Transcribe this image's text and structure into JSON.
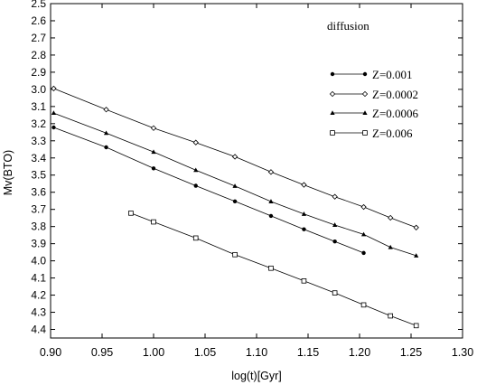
{
  "chart_data": {
    "type": "line",
    "title": "",
    "annotation": "diffusion",
    "xlabel": "log(t)[Gyr]",
    "ylabel": "Mv(BTO)",
    "xlim": [
      0.9,
      1.3
    ],
    "ylim": [
      2.5,
      4.45
    ],
    "y_inverted": true,
    "x_ticks": [
      "0.90",
      "0.95",
      "1.00",
      "1.05",
      "1.10",
      "1.15",
      "1.20",
      "1.25",
      "1.30"
    ],
    "y_ticks": [
      "2.5",
      "2.6",
      "2.7",
      "2.8",
      "2.9",
      "3.0",
      "3.1",
      "3.2",
      "3.3",
      "3.4",
      "3.5",
      "3.6",
      "3.7",
      "3.8",
      "3.9",
      "4.0",
      "4.1",
      "4.2",
      "4.3",
      "4.4"
    ],
    "grid": false,
    "legend_position": "right",
    "series": [
      {
        "name": "Z=0.001",
        "marker": "filled-circle",
        "color": "#000000",
        "x": [
          0.903,
          0.954,
          1.0,
          1.041,
          1.079,
          1.114,
          1.146,
          1.176,
          1.204
        ],
        "y": [
          3.222,
          3.338,
          3.461,
          3.562,
          3.653,
          3.738,
          3.816,
          3.887,
          3.954
        ]
      },
      {
        "name": "Z=0.0002",
        "marker": "open-diamond",
        "color": "#000000",
        "x": [
          0.903,
          0.954,
          1.0,
          1.041,
          1.079,
          1.114,
          1.146,
          1.176,
          1.204,
          1.23,
          1.255
        ],
        "y": [
          2.995,
          3.118,
          3.226,
          3.31,
          3.393,
          3.482,
          3.557,
          3.626,
          3.686,
          3.749,
          3.806
        ]
      },
      {
        "name": "Z=0.0006",
        "marker": "filled-triangle",
        "color": "#000000",
        "x": [
          0.903,
          0.954,
          1.0,
          1.041,
          1.079,
          1.114,
          1.146,
          1.176,
          1.204,
          1.23,
          1.255
        ],
        "y": [
          3.138,
          3.255,
          3.365,
          3.471,
          3.564,
          3.654,
          3.727,
          3.791,
          3.846,
          3.921,
          3.97
        ]
      },
      {
        "name": "Z=0.006",
        "marker": "open-square",
        "color": "#000000",
        "x": [
          0.978,
          1.0,
          1.041,
          1.079,
          1.114,
          1.146,
          1.176,
          1.204,
          1.23,
          1.255
        ],
        "y": [
          3.722,
          3.773,
          3.867,
          3.964,
          4.043,
          4.117,
          4.187,
          4.257,
          4.321,
          4.378
        ]
      }
    ]
  }
}
